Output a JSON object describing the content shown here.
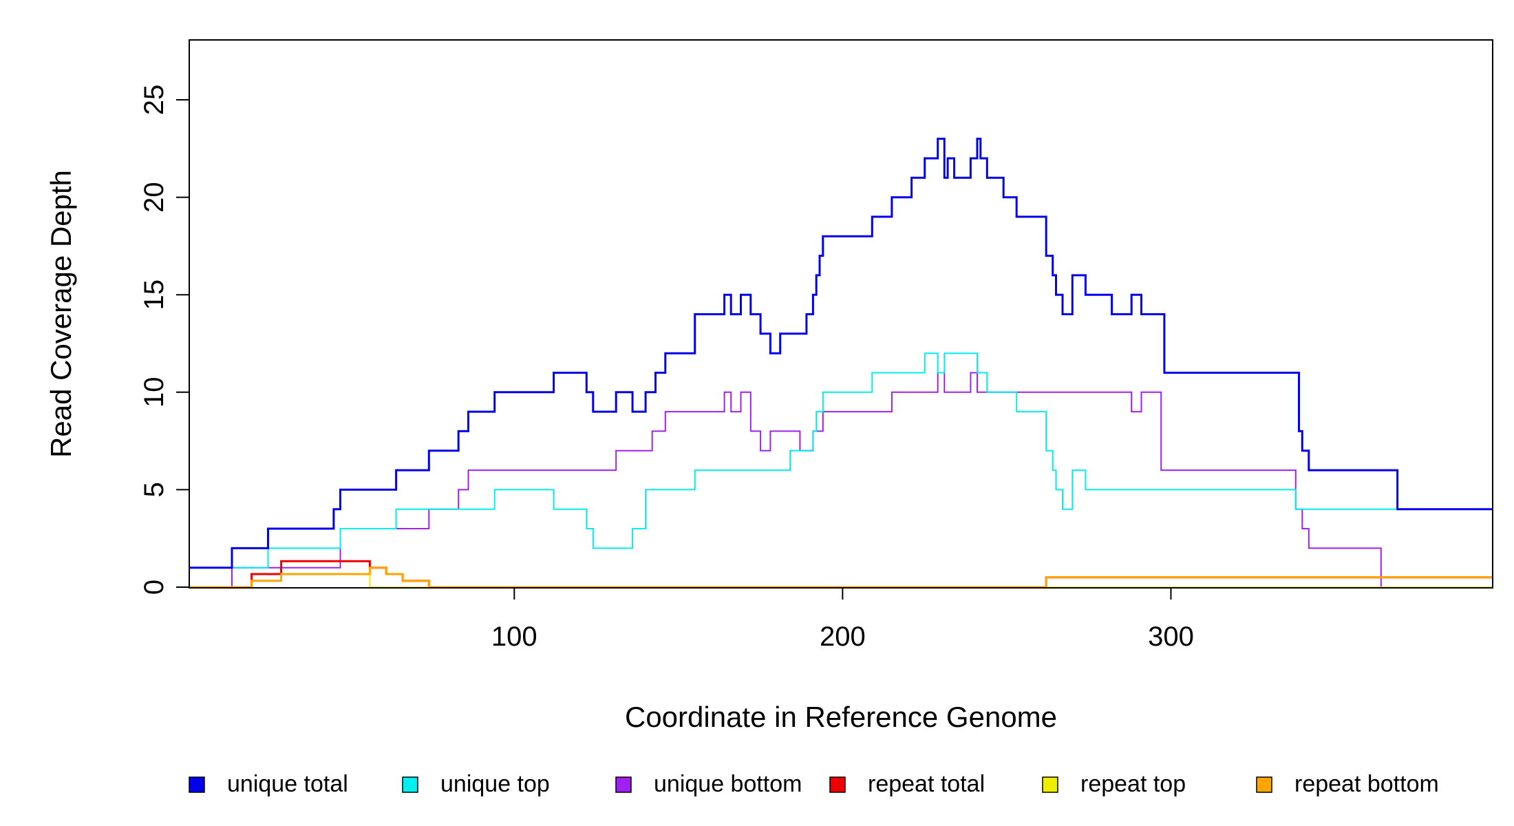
{
  "chart_data": {
    "type": "line",
    "title": "",
    "xlabel": "Coordinate in Reference Genome",
    "ylabel": "Read Coverage Depth",
    "xlim": [
      1,
      398
    ],
    "ylim": [
      0,
      28
    ],
    "x_ticks": [
      100,
      200,
      300
    ],
    "y_ticks": [
      0,
      5,
      10,
      15,
      20,
      25
    ],
    "step_style": "step",
    "legend_position": "bottom",
    "series": [
      {
        "name": "unique total",
        "color": "#0000EE",
        "x": [
          1,
          14,
          25,
          45,
          47,
          64,
          74,
          83,
          86,
          94,
          112,
          122,
          124,
          131,
          136,
          140,
          143,
          146,
          155,
          164,
          166,
          169,
          172,
          175,
          178,
          181,
          189,
          191,
          192,
          193,
          194,
          209,
          215,
          221,
          225,
          229,
          231,
          232,
          234,
          239,
          241,
          242,
          244,
          249,
          253,
          262,
          264,
          265,
          267,
          270,
          274,
          282,
          288,
          291,
          298,
          339,
          340,
          342,
          369
        ],
        "y": [
          1,
          2,
          3,
          4,
          5,
          6,
          7,
          8,
          9,
          10,
          11,
          10,
          9,
          10,
          9,
          10,
          11,
          12,
          14,
          15,
          14,
          15,
          14,
          13,
          12,
          13,
          14,
          15,
          16,
          17,
          18,
          19,
          20,
          21,
          22,
          23,
          21,
          22,
          21,
          22,
          23,
          22,
          21,
          20,
          19,
          17,
          16,
          15,
          14,
          16,
          15,
          14,
          15,
          14,
          11,
          8,
          7,
          6,
          4
        ]
      },
      {
        "name": "unique top",
        "color": "#00EEEE",
        "x": [
          1,
          25,
          47,
          64,
          94,
          112,
          122,
          124,
          136,
          140,
          155,
          184,
          191,
          192,
          194,
          209,
          225,
          229,
          231,
          241,
          244,
          253,
          262,
          264,
          265,
          267,
          270,
          274,
          282,
          288,
          338,
          369
        ],
        "y": [
          1,
          2,
          3,
          4,
          5,
          4,
          3,
          2,
          3,
          5,
          6,
          7,
          8,
          9,
          10,
          11,
          12,
          11,
          12,
          11,
          10,
          9,
          7,
          6,
          5,
          4,
          6,
          5,
          5,
          5,
          4,
          4
        ]
      },
      {
        "name": "unique bottom",
        "color": "#A020F0",
        "x": [
          1,
          14,
          25,
          45,
          47,
          64,
          74,
          83,
          86,
          94,
          112,
          131,
          142,
          146,
          155,
          164,
          166,
          169,
          172,
          175,
          178,
          181,
          187,
          191,
          194,
          209,
          215,
          221,
          225,
          229,
          231,
          234,
          239,
          241,
          244,
          249,
          253,
          262,
          264,
          265,
          267,
          270,
          274,
          282,
          288,
          291,
          297,
          338,
          340,
          342,
          364
        ],
        "y": [
          0,
          1,
          1,
          1,
          3,
          3,
          4,
          5,
          6,
          6,
          6,
          7,
          8,
          9,
          9,
          10,
          9,
          10,
          8,
          7,
          8,
          8,
          7,
          8,
          9,
          9,
          10,
          10,
          10,
          11,
          10,
          10,
          11,
          10,
          10,
          10,
          10,
          10,
          10,
          10,
          10,
          10,
          10,
          10,
          9,
          10,
          6,
          4,
          3,
          2,
          0
        ]
      },
      {
        "name": "repeat total",
        "color": "#EE0000",
        "x": [
          1,
          20,
          29,
          56,
          61,
          66,
          74,
          262
        ],
        "y": [
          0,
          0.67,
          1.33,
          1,
          0.67,
          0.33,
          0,
          0.5
        ]
      },
      {
        "name": "repeat top",
        "color": "#EEEE00",
        "x": [
          1,
          20,
          29,
          56,
          74,
          262
        ],
        "y": [
          0,
          0.33,
          0.67,
          0,
          0,
          0
        ]
      },
      {
        "name": "repeat bottom",
        "color": "#FFA500",
        "x": [
          1,
          20,
          29,
          56,
          61,
          66,
          74,
          262
        ],
        "y": [
          0,
          0.33,
          0.67,
          1,
          0.67,
          0.33,
          0,
          0.5
        ]
      }
    ]
  }
}
